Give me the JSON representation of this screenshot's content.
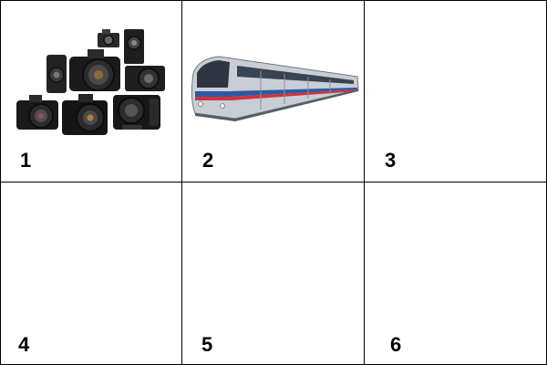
{
  "cells": [
    {
      "number": "1",
      "picture": "cameras"
    },
    {
      "number": "2",
      "picture": "metro-train"
    },
    {
      "number": "3",
      "picture": ""
    },
    {
      "number": "4",
      "picture": ""
    },
    {
      "number": "5",
      "picture": ""
    },
    {
      "number": "6",
      "picture": ""
    }
  ],
  "colors": {
    "grid_line": "#000000",
    "camera_body": "#1e1e1e",
    "train_body": "#c9ced6",
    "train_stripe_blue": "#2c5aa0",
    "train_stripe_red": "#d0323c"
  }
}
